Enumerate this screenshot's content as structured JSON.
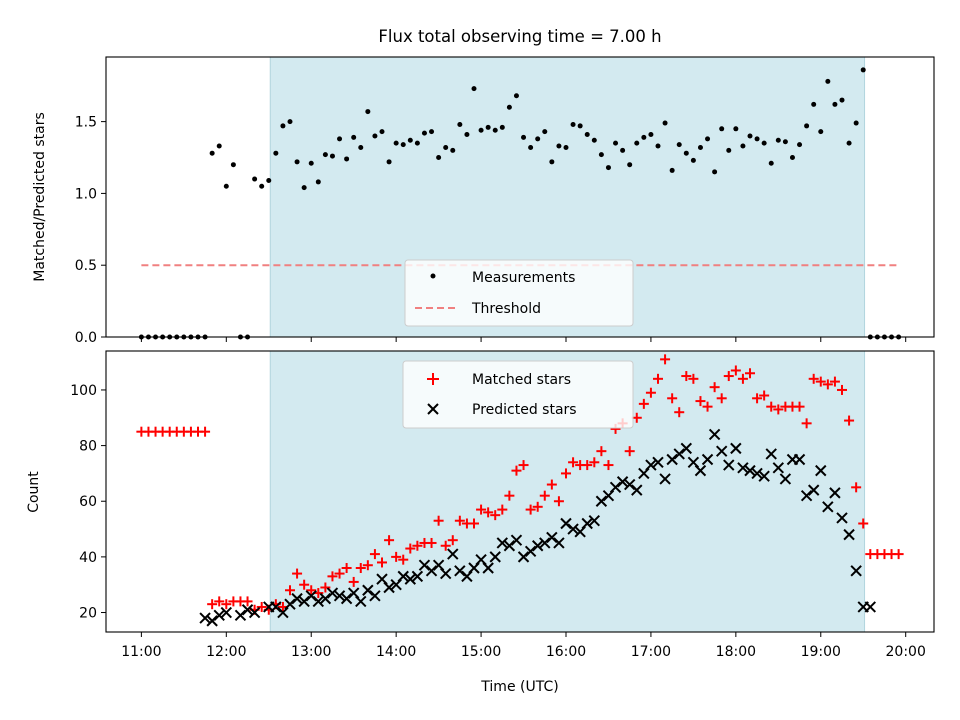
{
  "chart_data": [
    {
      "type": "scatter",
      "title": "Flux total observing time = 7.00 h",
      "xlabel": "",
      "ylabel": "Matched/Predicted stars",
      "xlim": [
        "10:35",
        "20:20"
      ],
      "ylim": [
        0,
        1.95
      ],
      "yticks": [
        "0.0",
        "0.5",
        "1.0",
        "1.5"
      ],
      "shaded_interval": [
        "12:31",
        "19:31"
      ],
      "shade_color": "#d3eaf0",
      "legend_position": "lower-center",
      "series": [
        {
          "name": "Measurements",
          "marker": "dot",
          "color": "#000000",
          "x": [
            "11:00",
            "11:05",
            "11:10",
            "11:15",
            "11:20",
            "11:25",
            "11:30",
            "11:35",
            "11:40",
            "11:45",
            "11:50",
            "11:55",
            "12:00",
            "12:05",
            "12:10",
            "12:15",
            "12:20",
            "12:25",
            "12:30",
            "12:35",
            "12:40",
            "12:45",
            "12:50",
            "12:55",
            "13:00",
            "13:05",
            "13:10",
            "13:15",
            "13:20",
            "13:25",
            "13:30",
            "13:35",
            "13:40",
            "13:45",
            "13:50",
            "13:55",
            "14:00",
            "14:05",
            "14:10",
            "14:15",
            "14:20",
            "14:25",
            "14:30",
            "14:35",
            "14:40",
            "14:45",
            "14:50",
            "14:55",
            "15:00",
            "15:05",
            "15:10",
            "15:15",
            "15:20",
            "15:25",
            "15:30",
            "15:35",
            "15:40",
            "15:45",
            "15:50",
            "15:55",
            "16:00",
            "16:05",
            "16:10",
            "16:15",
            "16:20",
            "16:25",
            "16:30",
            "16:35",
            "16:40",
            "16:45",
            "16:50",
            "16:55",
            "17:00",
            "17:05",
            "17:10",
            "17:15",
            "17:20",
            "17:25",
            "17:30",
            "17:35",
            "17:40",
            "17:45",
            "17:50",
            "17:55",
            "18:00",
            "18:05",
            "18:10",
            "18:15",
            "18:20",
            "18:25",
            "18:30",
            "18:35",
            "18:40",
            "18:45",
            "18:50",
            "18:55",
            "19:00",
            "19:05",
            "19:10",
            "19:15",
            "19:20",
            "19:25",
            "19:30",
            "19:35",
            "19:40",
            "19:45",
            "19:50",
            "19:55"
          ],
          "y": [
            0,
            0,
            0,
            0,
            0,
            0,
            0,
            0,
            0,
            0,
            1.28,
            1.33,
            1.05,
            1.2,
            0,
            0,
            1.1,
            1.05,
            1.09,
            1.28,
            1.47,
            1.5,
            1.22,
            1.04,
            1.21,
            1.08,
            1.27,
            1.26,
            1.38,
            1.24,
            1.39,
            1.32,
            1.57,
            1.4,
            1.43,
            1.22,
            1.35,
            1.34,
            1.37,
            1.35,
            1.42,
            1.43,
            1.25,
            1.32,
            1.3,
            1.48,
            1.41,
            1.73,
            1.44,
            1.46,
            1.44,
            1.46,
            1.6,
            1.68,
            1.39,
            1.32,
            1.38,
            1.43,
            1.22,
            1.33,
            1.32,
            1.48,
            1.47,
            1.41,
            1.37,
            1.27,
            1.18,
            1.35,
            1.3,
            1.2,
            1.35,
            1.39,
            1.41,
            1.33,
            1.49,
            1.16,
            1.34,
            1.28,
            1.23,
            1.32,
            1.38,
            1.15,
            1.45,
            1.3,
            1.45,
            1.33,
            1.4,
            1.38,
            1.35,
            1.21,
            1.37,
            1.36,
            1.25,
            1.34,
            1.47,
            1.62,
            1.43,
            1.78,
            1.62,
            1.65,
            1.35,
            1.49,
            1.86,
            0,
            0,
            0,
            0,
            0
          ]
        },
        {
          "name": "Threshold",
          "marker": "dashed-line",
          "color": "#f08080",
          "x": [
            "11:00",
            "19:55"
          ],
          "y": [
            0.5,
            0.5
          ]
        }
      ]
    },
    {
      "type": "scatter",
      "title": "",
      "xlabel": "Time (UTC)",
      "ylabel": "Count",
      "xlim": [
        "10:35",
        "20:20"
      ],
      "ylim": [
        13,
        114
      ],
      "yticks": [
        "20",
        "40",
        "60",
        "80",
        "100"
      ],
      "xticks": [
        "11:00",
        "12:00",
        "13:00",
        "14:00",
        "15:00",
        "16:00",
        "17:00",
        "18:00",
        "19:00",
        "20:00"
      ],
      "shaded_interval": [
        "12:31",
        "19:31"
      ],
      "shade_color": "#d3eaf0",
      "legend_position": "upper-center",
      "series": [
        {
          "name": "Matched stars",
          "marker": "plus",
          "color": "#ff0000",
          "x": [
            "11:00",
            "11:05",
            "11:10",
            "11:15",
            "11:20",
            "11:25",
            "11:30",
            "11:35",
            "11:40",
            "11:45",
            "11:50",
            "11:55",
            "12:00",
            "12:05",
            "12:10",
            "12:15",
            "12:20",
            "12:25",
            "12:30",
            "12:35",
            "12:40",
            "12:45",
            "12:50",
            "12:55",
            "13:00",
            "13:05",
            "13:10",
            "13:15",
            "13:20",
            "13:25",
            "13:30",
            "13:35",
            "13:40",
            "13:45",
            "13:50",
            "13:55",
            "14:00",
            "14:05",
            "14:10",
            "14:15",
            "14:20",
            "14:25",
            "14:30",
            "14:35",
            "14:40",
            "14:45",
            "14:50",
            "14:55",
            "15:00",
            "15:05",
            "15:10",
            "15:15",
            "15:20",
            "15:25",
            "15:30",
            "15:35",
            "15:40",
            "15:45",
            "15:50",
            "15:55",
            "16:00",
            "16:05",
            "16:10",
            "16:15",
            "16:20",
            "16:25",
            "16:30",
            "16:35",
            "16:40",
            "16:45",
            "16:50",
            "16:55",
            "17:00",
            "17:05",
            "17:10",
            "17:15",
            "17:20",
            "17:25",
            "17:30",
            "17:35",
            "17:40",
            "17:45",
            "17:50",
            "17:55",
            "18:00",
            "18:05",
            "18:10",
            "18:15",
            "18:20",
            "18:25",
            "18:30",
            "18:35",
            "18:40",
            "18:45",
            "18:50",
            "18:55",
            "19:00",
            "19:05",
            "19:10",
            "19:15",
            "19:20",
            "19:25",
            "19:30",
            "19:35",
            "19:40",
            "19:45",
            "19:50",
            "19:55"
          ],
          "y": [
            85,
            85,
            85,
            85,
            85,
            85,
            85,
            85,
            85,
            85,
            23,
            24,
            23,
            24,
            24,
            24,
            21,
            22,
            21,
            23,
            22,
            28,
            34,
            30,
            28,
            27,
            29,
            33,
            34,
            36,
            31,
            36,
            37,
            41,
            38,
            46,
            40,
            39,
            43,
            44,
            45,
            45,
            53,
            44,
            46,
            53,
            52,
            52,
            57,
            56,
            55,
            57,
            62,
            71,
            73,
            57,
            58,
            62,
            66,
            60,
            70,
            74,
            73,
            73,
            74,
            78,
            73,
            86,
            88,
            78,
            90,
            95,
            99,
            104,
            111,
            97,
            92,
            105,
            104,
            96,
            94,
            101,
            97,
            105,
            107,
            104,
            106,
            97,
            98,
            94,
            93,
            94,
            94,
            94,
            88,
            104,
            103,
            102,
            103,
            100,
            89,
            65,
            52,
            41,
            41,
            41,
            41,
            41
          ]
        },
        {
          "name": "Predicted stars",
          "marker": "x",
          "color": "#000000",
          "x": [
            "11:45",
            "11:50",
            "11:55",
            "12:00",
            "12:10",
            "12:15",
            "12:20",
            "12:30",
            "12:35",
            "12:40",
            "12:45",
            "12:50",
            "12:55",
            "13:00",
            "13:05",
            "13:10",
            "13:15",
            "13:20",
            "13:25",
            "13:30",
            "13:35",
            "13:40",
            "13:45",
            "13:50",
            "13:55",
            "14:00",
            "14:05",
            "14:10",
            "14:15",
            "14:20",
            "14:25",
            "14:30",
            "14:35",
            "14:40",
            "14:45",
            "14:50",
            "14:55",
            "15:00",
            "15:05",
            "15:10",
            "15:15",
            "15:20",
            "15:25",
            "15:30",
            "15:35",
            "15:40",
            "15:45",
            "15:50",
            "15:55",
            "16:00",
            "16:05",
            "16:10",
            "16:15",
            "16:20",
            "16:25",
            "16:30",
            "16:35",
            "16:40",
            "16:45",
            "16:50",
            "16:55",
            "17:00",
            "17:05",
            "17:10",
            "17:15",
            "17:20",
            "17:25",
            "17:30",
            "17:35",
            "17:40",
            "17:45",
            "17:50",
            "17:55",
            "18:00",
            "18:05",
            "18:10",
            "18:15",
            "18:20",
            "18:25",
            "18:30",
            "18:35",
            "18:40",
            "18:45",
            "18:50",
            "18:55",
            "19:00",
            "19:05",
            "19:10",
            "19:15",
            "19:20",
            "19:25",
            "19:30",
            "19:35"
          ],
          "y": [
            18,
            17,
            19,
            20,
            19,
            21,
            20,
            22,
            22,
            20,
            23,
            25,
            24,
            26,
            24,
            25,
            27,
            26,
            25,
            27,
            24,
            28,
            26,
            32,
            29,
            30,
            33,
            32,
            33,
            37,
            35,
            37,
            34,
            41,
            35,
            33,
            36,
            39,
            36,
            40,
            45,
            44,
            46,
            40,
            42,
            44,
            45,
            47,
            45,
            52,
            50,
            49,
            52,
            53,
            60,
            62,
            65,
            67,
            66,
            64,
            70,
            73,
            74,
            68,
            75,
            77,
            79,
            74,
            71,
            75,
            84,
            78,
            73,
            79,
            72,
            71,
            70,
            69,
            77,
            72,
            68,
            75,
            75,
            62,
            64,
            71,
            58,
            63,
            54,
            48,
            35,
            22,
            22
          ]
        }
      ]
    }
  ]
}
